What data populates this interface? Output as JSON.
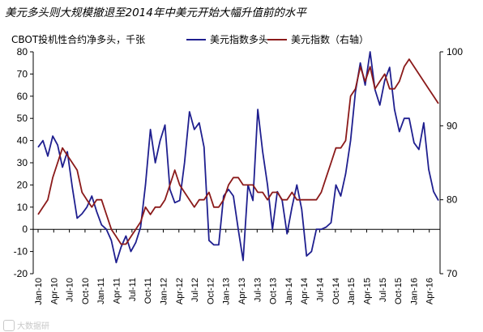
{
  "title": "美元多头则大规模撤退至2014年中美元开始大幅升值前的水平",
  "watermark": "大数据研",
  "colors": {
    "navy": "#1f1f8f",
    "maroon": "#8b1a1a",
    "axis": "#000000"
  },
  "chart_data": {
    "type": "line",
    "ylabel_left": "CBOT投机性合约净多头，千张",
    "ylim_left": [
      -20,
      80
    ],
    "yticks_left": [
      "80",
      "70",
      "60",
      "50",
      "40",
      "30",
      "20",
      "10",
      "0",
      "-10",
      "-20"
    ],
    "ylim_right": [
      70,
      100
    ],
    "yticks_right": [
      "100",
      "90",
      "80",
      "70"
    ],
    "x_ticks": [
      "Jan-10",
      "Apr-10",
      "Jul-10",
      "Oct-10",
      "Jan-11",
      "Apr-11",
      "Jul-11",
      "Oct-11",
      "Jan-12",
      "Apr-12",
      "Jul-12",
      "Oct-12",
      "Jan-13",
      "Apr-13",
      "Jul-13",
      "Oct-13",
      "Jan-14",
      "Apr-14",
      "Jul-14",
      "Oct-14",
      "Jan-15",
      "Apr-15",
      "Jul-15",
      "Oct-15",
      "Jan-16",
      "Apr-16"
    ],
    "series": [
      {
        "name": "美元指数多头",
        "axis": "left",
        "color": "#1f1f8f",
        "values": [
          37,
          40,
          33,
          42,
          38,
          28,
          35,
          19,
          5,
          7,
          10,
          15,
          8,
          2,
          0,
          -5,
          -15,
          -8,
          -3,
          -10,
          -6,
          1,
          20,
          45,
          30,
          40,
          47,
          18,
          12,
          13,
          30,
          53,
          45,
          48,
          37,
          -5,
          -7,
          -7,
          15,
          18,
          15,
          0,
          -14,
          20,
          13,
          54,
          35,
          20,
          0,
          17,
          13,
          -2,
          10,
          20,
          9,
          -12,
          -10,
          0,
          0,
          1,
          3,
          20,
          15,
          25,
          40,
          62,
          75,
          65,
          80,
          63,
          56,
          67,
          73,
          54,
          44,
          50,
          50,
          39,
          36,
          48,
          27,
          17,
          13
        ]
      },
      {
        "name": "美元指数（右轴）",
        "axis": "right",
        "color": "#8b1a1a",
        "values": [
          78,
          79,
          80,
          83,
          85,
          87,
          86,
          85,
          84,
          81,
          80,
          79,
          80,
          80,
          78,
          76,
          75,
          74,
          74,
          75,
          76,
          77,
          79,
          78,
          79,
          79,
          80,
          82,
          84,
          82,
          81,
          80,
          79,
          80,
          80,
          81,
          79,
          79,
          80,
          82,
          83,
          83,
          82,
          82,
          82,
          81,
          81,
          80,
          81,
          81,
          80,
          80,
          81,
          80,
          80,
          80,
          80,
          80,
          81,
          83,
          85,
          87,
          87,
          88,
          94,
          95,
          98,
          96,
          98,
          95,
          96,
          97,
          95,
          95,
          96,
          98,
          99,
          98,
          97,
          96,
          95,
          94,
          93
        ]
      }
    ]
  }
}
